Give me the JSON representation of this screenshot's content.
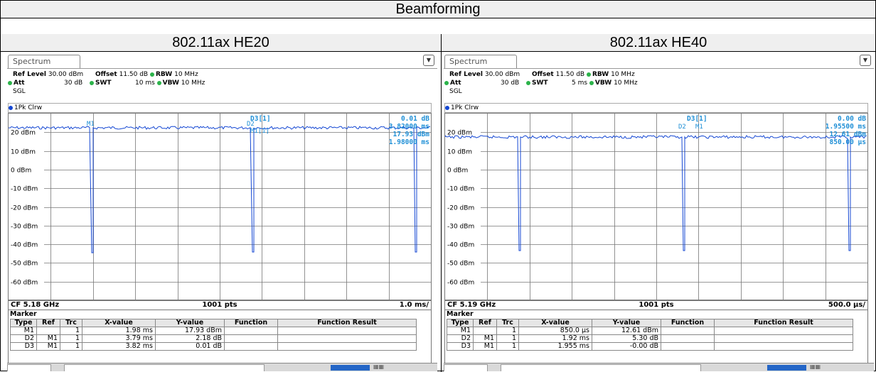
{
  "title": "Beamforming",
  "columns": [
    {
      "heading": "802.11ax HE20",
      "tab": "Spectrum",
      "ref_level": "30.00 dBm",
      "offset": "11.50 dB",
      "rbw": "10 MHz",
      "att": "30 dB",
      "swt": "10 ms",
      "vbw": "10 MHz",
      "mode": "SGL",
      "trace": "1Pk Clrw",
      "y_labels": [
        "20 dBm",
        "10 dBm",
        "0 dBm",
        "-10 dBm",
        "-20 dBm",
        "-30 dBm",
        "-40 dBm",
        "-50 dBm",
        "-60 dBm"
      ],
      "markers_on_plot": [
        "M1",
        "D2",
        "M1[1]"
      ],
      "readout_d3_name": "D3[1]",
      "readout_d3_val": "0.01 dB",
      "readout_d3_x": "3.82000 ms",
      "readout_m1_val": "17.93 dBm",
      "readout_m1_x": "1.98000 ms",
      "cf": "CF 5.18 GHz",
      "pts": "1001 pts",
      "div": "1.0 ms/",
      "marker_title": "Marker",
      "marker_headers": [
        "Type",
        "Ref",
        "Trc",
        "X-value",
        "Y-value",
        "Function",
        "Function Result"
      ],
      "marker_rows": [
        [
          "M1",
          "",
          "1",
          "1.98 ms",
          "17.93 dBm",
          "",
          ""
        ],
        [
          "D2",
          "M1",
          "1",
          "3.79 ms",
          "2.18 dB",
          "",
          ""
        ],
        [
          "D3",
          "M1",
          "1",
          "3.82 ms",
          "0.01 dB",
          "",
          ""
        ]
      ]
    },
    {
      "heading": "802.11ax HE40",
      "tab": "Spectrum",
      "ref_level": "30.00 dBm",
      "offset": "11.50 dB",
      "rbw": "10 MHz",
      "att": "30 dB",
      "swt": "5 ms",
      "vbw": "10 MHz",
      "mode": "SGL",
      "trace": "1Pk Clrw",
      "y_labels": [
        "20 dBm",
        "10 dBm",
        "0 dBm",
        "-10 dBm",
        "-20 dBm",
        "-30 dBm",
        "-40 dBm",
        "-50 dBm",
        "-60 dBm"
      ],
      "markers_on_plot": [
        "D2",
        "M1"
      ],
      "readout_d3_name": "D3[1]",
      "readout_d3_val": "0.00 dB",
      "readout_d3_x": "1.95500 ms",
      "readout_m1_val": "12.61 dBm",
      "readout_m1_x": "850.00 μs",
      "cf": "CF 5.19 GHz",
      "pts": "1001 pts",
      "div": "500.0 μs/",
      "marker_title": "Marker",
      "marker_headers": [
        "Type",
        "Ref",
        "Trc",
        "X-value",
        "Y-value",
        "Function",
        "Function Result"
      ],
      "marker_rows": [
        [
          "M1",
          "",
          "1",
          "850.0 μs",
          "12.61 dBm",
          "",
          ""
        ],
        [
          "D2",
          "M1",
          "1",
          "1.92 ms",
          "5.30 dB",
          "",
          ""
        ],
        [
          "D3",
          "M1",
          "1",
          "1.955 ms",
          "-0.00 dB",
          "",
          ""
        ]
      ]
    }
  ],
  "labels": {
    "ref_level": "Ref Level",
    "offset": "Offset",
    "rbw": "RBW",
    "att": "Att",
    "swt": "SWT",
    "vbw": "VBW"
  },
  "colors": {
    "trace": "#1447d3",
    "marker_text": "#1f8fd6",
    "grid": "#777777"
  }
}
